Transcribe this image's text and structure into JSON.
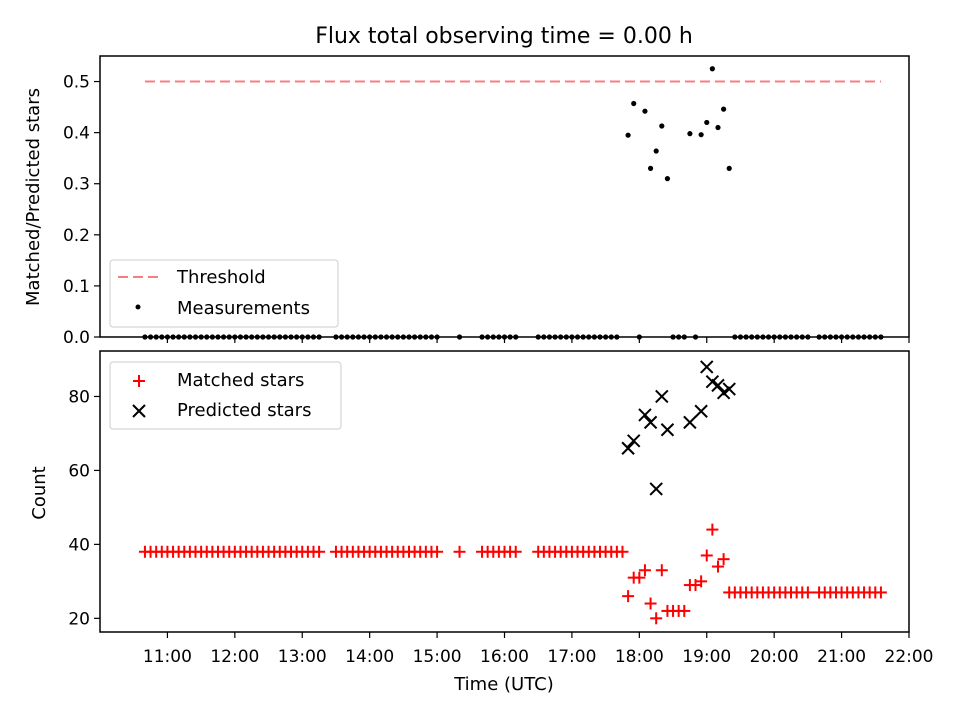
{
  "figure": {
    "title": "Flux total observing time = 0.00 h",
    "xlabel": "Time (UTC)"
  },
  "chart_data": [
    {
      "type": "scatter",
      "ylabel": "Matched/Predicted stars",
      "ylim": [
        0,
        0.55
      ],
      "yticks": [
        "0.0",
        "0.1",
        "0.2",
        "0.3",
        "0.4",
        "0.5"
      ],
      "xlim": [
        "10:00",
        "22:00"
      ],
      "xticks": [
        "11:00",
        "12:00",
        "13:00",
        "14:00",
        "15:00",
        "16:00",
        "17:00",
        "18:00",
        "19:00",
        "20:00",
        "21:00",
        "22:00"
      ],
      "legend_position": "lower-left",
      "series": [
        {
          "name": "Threshold",
          "kind": "dashed-line",
          "color": "#f87d7d",
          "x": [
            "10:40",
            "21:35"
          ],
          "y": [
            0.5,
            0.5
          ]
        },
        {
          "name": "Measurements",
          "kind": "dot",
          "color": "#000000",
          "x": [
            "17:50",
            "17:55",
            "18:05",
            "18:10",
            "18:15",
            "18:20",
            "18:25",
            "18:45",
            "18:55",
            "19:00",
            "19:05",
            "19:10",
            "19:15",
            "19:20"
          ],
          "y": [
            0.395,
            0.457,
            0.442,
            0.33,
            0.364,
            0.413,
            0.31,
            0.398,
            0.396,
            0.42,
            0.525,
            0.41,
            0.446,
            0.33
          ],
          "zero_runs": [
            [
              "10:40",
              "13:15"
            ],
            [
              "13:30",
              "15:00"
            ],
            [
              "15:20",
              "15:20"
            ],
            [
              "15:40",
              "16:10"
            ],
            [
              "16:30",
              "17:40"
            ],
            [
              "18:00",
              "18:00"
            ],
            [
              "18:30",
              "18:40"
            ],
            [
              "18:50",
              "18:50"
            ],
            [
              "19:25",
              "20:30"
            ],
            [
              "20:40",
              "21:35"
            ]
          ]
        }
      ]
    },
    {
      "type": "scatter",
      "ylabel": "Count",
      "ylim": [
        16.3,
        92.3
      ],
      "yticks": [
        "20",
        "40",
        "60",
        "80"
      ],
      "legend_position": "upper-left",
      "series": [
        {
          "name": "Matched stars",
          "marker": "+",
          "color": "#ff0000",
          "x": [
            "17:50",
            "17:55",
            "18:00",
            "18:05",
            "18:10",
            "18:15",
            "18:20",
            "18:25",
            "18:30",
            "18:35",
            "18:40",
            "18:45",
            "18:50",
            "18:55",
            "19:00",
            "19:05",
            "19:10",
            "19:15",
            "19:20"
          ],
          "y": [
            26,
            31,
            31,
            33,
            24,
            20,
            33,
            22,
            22,
            22,
            22,
            29,
            29,
            30,
            37,
            44,
            34,
            36,
            27
          ],
          "constant_runs": [
            {
              "y": 38,
              "runs": [
                [
                  "10:40",
                  "13:15"
                ],
                [
                  "13:30",
                  "15:00"
                ],
                [
                  "15:20",
                  "15:20"
                ],
                [
                  "15:40",
                  "16:10"
                ],
                [
                  "16:30",
                  "17:45"
                ]
              ]
            },
            {
              "y": 27,
              "runs": [
                [
                  "19:25",
                  "20:30"
                ],
                [
                  "20:40",
                  "21:35"
                ]
              ]
            }
          ]
        },
        {
          "name": "Predicted stars",
          "marker": "x",
          "color": "#000000",
          "x": [
            "17:50",
            "17:55",
            "18:05",
            "18:10",
            "18:15",
            "18:20",
            "18:25",
            "18:45",
            "18:55",
            "19:00",
            "19:05",
            "19:10",
            "19:15",
            "19:20"
          ],
          "y": [
            66,
            68,
            75,
            73,
            55,
            80,
            71,
            73,
            76,
            88,
            84,
            83,
            81,
            82
          ]
        }
      ]
    }
  ]
}
